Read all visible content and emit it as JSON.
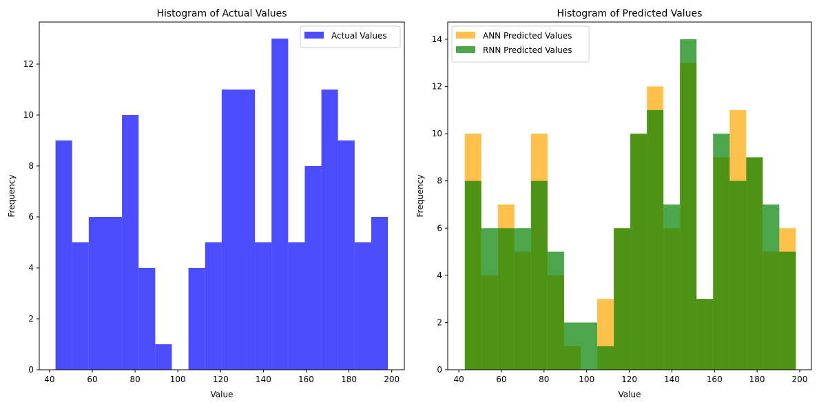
{
  "chart_data": [
    {
      "type": "bar",
      "subtype": "histogram",
      "title": "Histogram of Actual Values",
      "xlabel": "Value",
      "ylabel": "Frequency",
      "xlim": [
        35.2,
        205.9
      ],
      "ylim": [
        0,
        13.65
      ],
      "xticks": [
        40,
        60,
        80,
        100,
        120,
        140,
        160,
        180,
        200
      ],
      "yticks": [
        0,
        2,
        4,
        6,
        8,
        10,
        12
      ],
      "bin_range": [
        42.8,
        198.2
      ],
      "bins": 20,
      "legend_position": "upper right",
      "series": [
        {
          "name": "Actual Values",
          "color": "#0000ff",
          "alpha": 0.7,
          "values": [
            9,
            5,
            6,
            6,
            10,
            4,
            1,
            0,
            4,
            5,
            11,
            11,
            5,
            13,
            5,
            8,
            11,
            9,
            5,
            6
          ]
        }
      ]
    },
    {
      "type": "bar",
      "subtype": "histogram",
      "title": "Histogram of Predicted Values",
      "xlabel": "Value",
      "ylabel": "Frequency",
      "xlim": [
        34.8,
        205.5
      ],
      "ylim": [
        0,
        14.73
      ],
      "xticks": [
        40,
        60,
        80,
        100,
        120,
        140,
        160,
        180,
        200
      ],
      "yticks": [
        0,
        2,
        4,
        6,
        8,
        10,
        12,
        14
      ],
      "bin_range": [
        42.8,
        198.2
      ],
      "bins": 20,
      "legend_position": "upper left",
      "series": [
        {
          "name": "ANN Predicted Values",
          "color": "#ffa500",
          "alpha": 0.7,
          "values": [
            10,
            4,
            7,
            5,
            10,
            4,
            1,
            0,
            3,
            6,
            10,
            12,
            6,
            13,
            3,
            9,
            11,
            9,
            5,
            6
          ]
        },
        {
          "name": "RNN Predicted Values",
          "color": "#008000",
          "alpha": 0.7,
          "values": [
            8,
            6,
            6,
            6,
            8,
            5,
            2,
            2,
            1,
            6,
            10,
            11,
            7,
            14,
            3,
            10,
            8,
            9,
            7,
            5
          ]
        }
      ]
    }
  ]
}
